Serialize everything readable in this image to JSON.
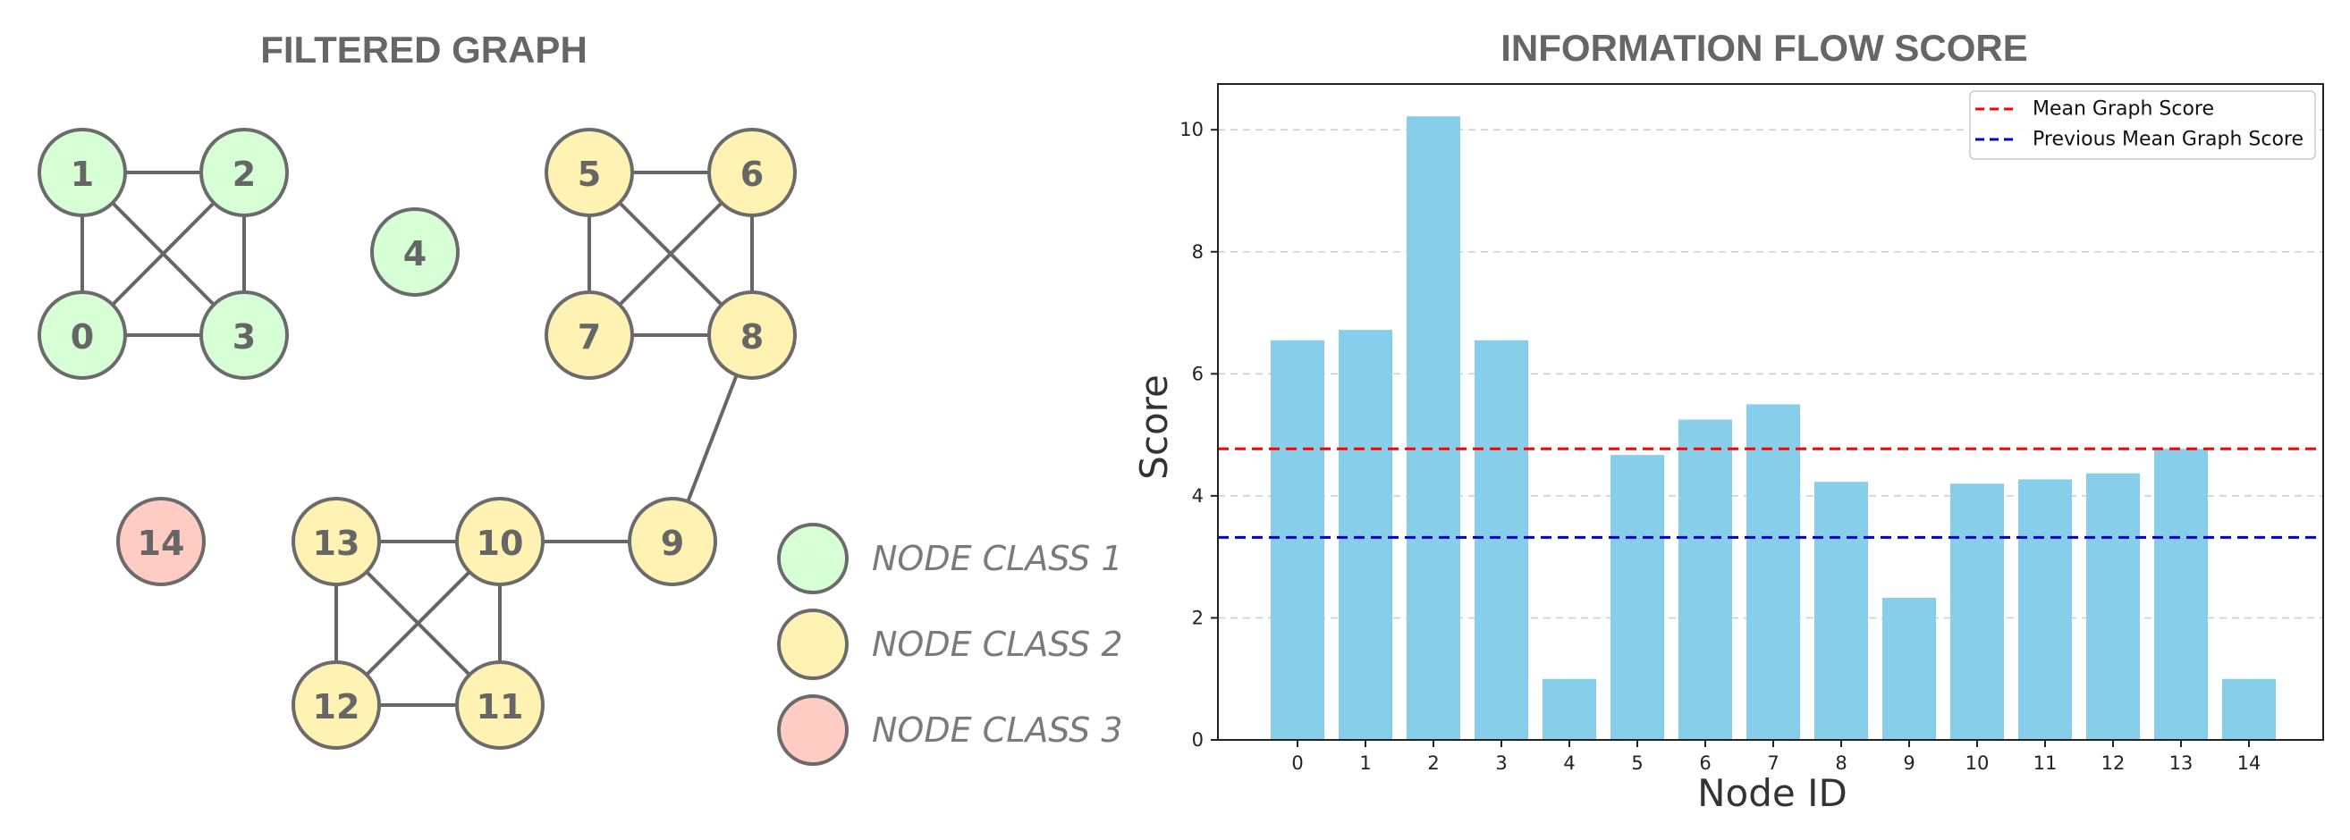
{
  "graph_panel": {
    "title": "FILTERED GRAPH",
    "class_colors": {
      "1": "#d6ffd6",
      "2": "#fff2b3",
      "3": "#ffccc4"
    },
    "nodes": [
      {
        "id": "0",
        "class": "1"
      },
      {
        "id": "1",
        "class": "1"
      },
      {
        "id": "2",
        "class": "1"
      },
      {
        "id": "3",
        "class": "1"
      },
      {
        "id": "4",
        "class": "1"
      },
      {
        "id": "5",
        "class": "2"
      },
      {
        "id": "6",
        "class": "2"
      },
      {
        "id": "7",
        "class": "2"
      },
      {
        "id": "8",
        "class": "2"
      },
      {
        "id": "9",
        "class": "2"
      },
      {
        "id": "10",
        "class": "2"
      },
      {
        "id": "11",
        "class": "2"
      },
      {
        "id": "12",
        "class": "2"
      },
      {
        "id": "13",
        "class": "2"
      },
      {
        "id": "14",
        "class": "3"
      }
    ],
    "edges": [
      [
        "1",
        "2"
      ],
      [
        "1",
        "0"
      ],
      [
        "1",
        "3"
      ],
      [
        "2",
        "0"
      ],
      [
        "2",
        "3"
      ],
      [
        "0",
        "3"
      ],
      [
        "5",
        "6"
      ],
      [
        "5",
        "7"
      ],
      [
        "5",
        "8"
      ],
      [
        "6",
        "7"
      ],
      [
        "6",
        "8"
      ],
      [
        "7",
        "8"
      ],
      [
        "8",
        "9"
      ],
      [
        "9",
        "10"
      ],
      [
        "13",
        "10"
      ],
      [
        "13",
        "12"
      ],
      [
        "13",
        "11"
      ],
      [
        "10",
        "12"
      ],
      [
        "10",
        "11"
      ],
      [
        "12",
        "11"
      ]
    ],
    "legend": [
      {
        "label": "NODE CLASS 1",
        "class": "1"
      },
      {
        "label": "NODE CLASS 2",
        "class": "2"
      },
      {
        "label": "NODE CLASS 3",
        "class": "3"
      }
    ]
  },
  "chart_data": {
    "type": "bar",
    "title": "INFORMATION FLOW SCORE",
    "xlabel": "Node ID",
    "ylabel": "Score",
    "categories": [
      "0",
      "1",
      "2",
      "3",
      "4",
      "5",
      "6",
      "7",
      "8",
      "9",
      "10",
      "11",
      "12",
      "13",
      "14"
    ],
    "values": [
      6.55,
      6.72,
      10.22,
      6.55,
      1.0,
      4.67,
      5.25,
      5.5,
      4.23,
      2.33,
      4.2,
      4.27,
      4.37,
      4.77,
      1.0
    ],
    "ylim": [
      0,
      10.75
    ],
    "yticks": [
      0,
      2,
      4,
      6,
      8,
      10
    ],
    "grid": "y",
    "bar_color": "#87ceeb",
    "reference_lines": [
      {
        "name": "Mean Graph Score",
        "value": 4.77,
        "color": "#ff0000"
      },
      {
        "name": "Previous Mean Graph Score",
        "value": 3.32,
        "color": "#0000cc"
      }
    ],
    "legend_position": "top-right"
  }
}
